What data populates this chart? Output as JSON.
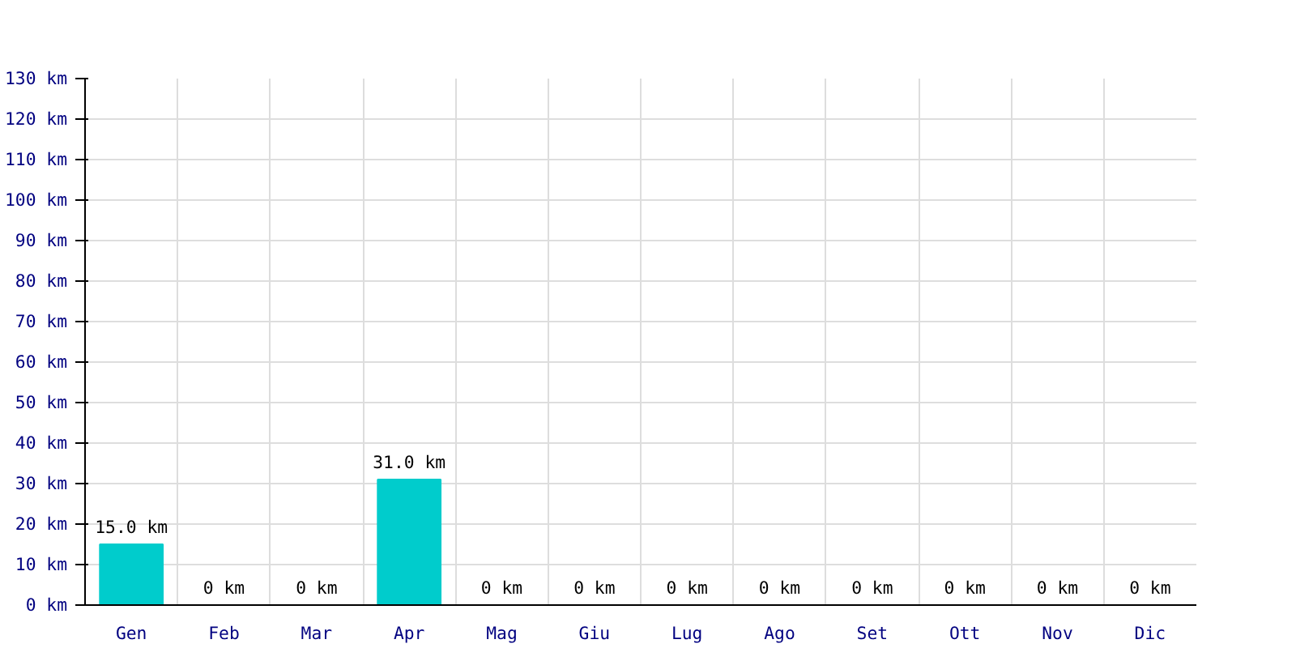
{
  "chart_data": {
    "type": "bar",
    "categories": [
      "Gen",
      "Feb",
      "Mar",
      "Apr",
      "Mag",
      "Giu",
      "Lug",
      "Ago",
      "Set",
      "Ott",
      "Nov",
      "Dic"
    ],
    "values": [
      15.0,
      0,
      0,
      31.0,
      0,
      0,
      0,
      0,
      0,
      0,
      0,
      0
    ],
    "value_labels": [
      "15.0 km",
      "0 km",
      "0 km",
      "31.0 km",
      "0 km",
      "0 km",
      "0 km",
      "0 km",
      "0 km",
      "0 km",
      "0 km",
      "0 km"
    ],
    "color": "#00cccc",
    "ylim": [
      0,
      130
    ],
    "yticks": [
      {
        "value": 0,
        "label": "0 km"
      },
      {
        "value": 10,
        "label": "10 km"
      },
      {
        "value": 20,
        "label": "20 km"
      },
      {
        "value": 30,
        "label": "30 km"
      },
      {
        "value": 40,
        "label": "40 km"
      },
      {
        "value": 50,
        "label": "50 km"
      },
      {
        "value": 60,
        "label": "60 km"
      },
      {
        "value": 70,
        "label": "70 km"
      },
      {
        "value": 80,
        "label": "80 km"
      },
      {
        "value": 90,
        "label": "90 km"
      },
      {
        "value": 100,
        "label": "100 km"
      },
      {
        "value": 110,
        "label": "110 km"
      },
      {
        "value": 120,
        "label": "120 km"
      },
      {
        "value": 130,
        "label": "130 km"
      }
    ],
    "grid": true
  }
}
